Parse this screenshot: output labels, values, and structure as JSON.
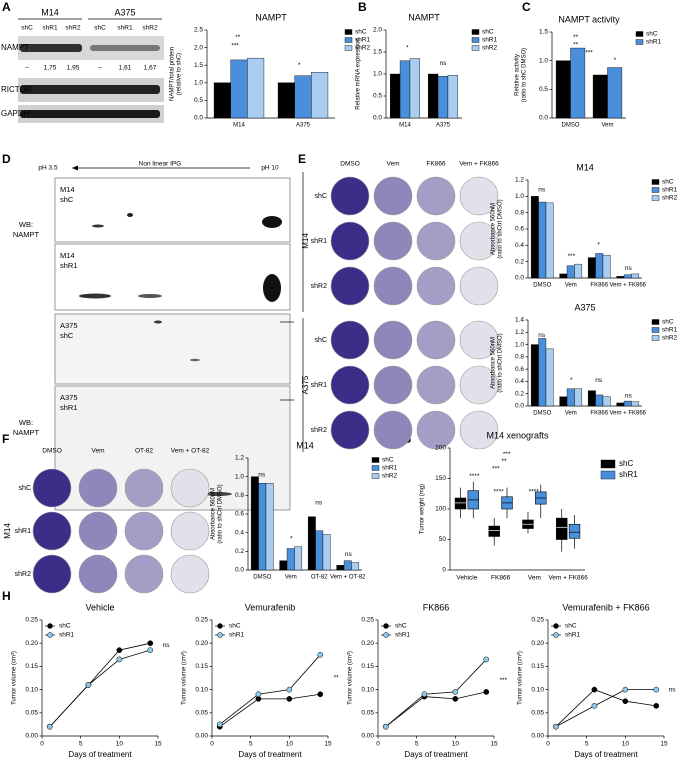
{
  "panels": [
    "A",
    "B",
    "C",
    "D",
    "E",
    "F",
    "G",
    "H"
  ],
  "blot_a": {
    "cell_lines": [
      "M14",
      "A375"
    ],
    "lanes": [
      "shC",
      "shR1",
      "shR2",
      "shC",
      "shR1",
      "shR2"
    ],
    "proteins": [
      "NAMPT",
      "RICTOR",
      "GAPDH"
    ],
    "quantification": [
      "–",
      "1,75",
      "1,95",
      "–",
      "1,61",
      "1,67"
    ]
  },
  "blot_d": {
    "axis_labels": [
      "pH 3.5",
      "Non linear IPG",
      "pH 10"
    ],
    "probe": [
      "WB:",
      "NAMPT"
    ],
    "samples": [
      [
        "M14",
        "shC"
      ],
      [
        "M14",
        "shR1"
      ],
      [
        "A375",
        "shC"
      ],
      [
        "A375",
        "shR1"
      ]
    ]
  },
  "plates_e": {
    "treatments": [
      "DMSO",
      "Vem",
      "FK866",
      "Vem + FK866"
    ],
    "cell_lines": [
      "M14",
      "A375"
    ],
    "rows": [
      "shC",
      "shR1",
      "shR2"
    ]
  },
  "plates_f": {
    "treatments": [
      "DMSO",
      "Vem",
      "OT-82",
      "Vem + OT-82"
    ],
    "cell_lines": [
      "M14"
    ],
    "rows": [
      "shC",
      "shR1",
      "shR2"
    ]
  },
  "chart_data": [
    {
      "type": "bar",
      "title": "NAMPT",
      "ylabel": [
        "NAMPT/total protein",
        "(relative to shC)"
      ],
      "categories": [
        "M14",
        "A375"
      ],
      "series": [
        {
          "name": "shC",
          "color": "#000000",
          "values": [
            1,
            1
          ]
        },
        {
          "name": "shR1",
          "color": "#4a8fdc",
          "values": [
            1.65,
            1.2
          ]
        },
        {
          "name": "shR2",
          "color": "#a9cdf0",
          "values": [
            1.7,
            1.3
          ]
        }
      ],
      "ylim": [
        0,
        2.5
      ],
      "yticks": [
        {
          "value": 0,
          "label": "0.0"
        },
        0.5,
        {
          "value": 1,
          "label": "1.0"
        },
        1.5,
        {
          "value": 2,
          "label": "2.0"
        },
        2.5
      ],
      "annotations": [
        "**",
        "***",
        "*"
      ],
      "legend": "outside right"
    },
    {
      "type": "bar",
      "title": "NAMPT",
      "ylabel": [
        "Relative mRNA expression"
      ],
      "categories": [
        "M14",
        "A375"
      ],
      "series": [
        {
          "name": "shC",
          "color": "#000000",
          "values": [
            1,
            1
          ]
        },
        {
          "name": "shR1",
          "color": "#4a8fdc",
          "values": [
            1.3,
            0.95
          ]
        },
        {
          "name": "shR2",
          "color": "#a9cdf0",
          "values": [
            1.35,
            0.97
          ]
        }
      ],
      "ylim": [
        0,
        2
      ],
      "yticks": [
        {
          "value": 0,
          "label": "0.0"
        },
        0.5,
        {
          "value": 1,
          "label": "1.0"
        },
        1.5,
        {
          "value": 2,
          "label": "2.0"
        }
      ],
      "annotations": [
        "*",
        "ns"
      ],
      "legend": "outside right"
    },
    {
      "type": "bar",
      "title": "NAMPT activity",
      "ylabel": [
        "Relative activity",
        "(ratio to shC DMSO)"
      ],
      "categories": [
        "DMSO",
        "Vem"
      ],
      "series": [
        {
          "name": "shC",
          "color": "#000000",
          "values": [
            1,
            0.75
          ]
        },
        {
          "name": "shR1",
          "color": "#4a8fdc",
          "values": [
            1.22,
            0.88
          ]
        }
      ],
      "ylim": [
        0,
        1.5
      ],
      "yticks": [
        {
          "value": 0,
          "label": "0.0"
        },
        0.5,
        {
          "value": 1,
          "label": "1.0"
        },
        1.5
      ],
      "annotations": [
        "**",
        "**",
        "***",
        "*"
      ],
      "legend": "outside right"
    },
    {
      "type": "bar",
      "title": "M14",
      "ylabel": [
        "Absorbance 560nM",
        "(ratio to shCtrl DMSO)"
      ],
      "categories": [
        "DMSO",
        "Vem",
        "FK866",
        "Vem + FK866"
      ],
      "series": [
        {
          "name": "shC",
          "color": "#000000",
          "values": [
            1.0,
            0.05,
            0.25,
            0.02
          ]
        },
        {
          "name": "shR1",
          "color": "#4a8fdc",
          "values": [
            0.93,
            0.15,
            0.3,
            0.04
          ]
        },
        {
          "name": "shR2",
          "color": "#a9cdf0",
          "values": [
            0.92,
            0.17,
            0.28,
            0.05
          ]
        }
      ],
      "ylim": [
        0,
        1.2
      ],
      "yticks": [
        {
          "value": 0,
          "label": "0.0"
        },
        0.2,
        0.4,
        0.6,
        0.8,
        {
          "value": 1,
          "label": "1.0"
        },
        1.2
      ],
      "annotations": [
        "ns",
        "***",
        "*",
        "ns"
      ],
      "legend": "outside right"
    },
    {
      "type": "bar",
      "title": "A375",
      "ylabel": [
        "Absorbance 560nM",
        "(ratio to shCtrl DMSO)"
      ],
      "categories": [
        "DMSO",
        "Vem",
        "FK866",
        "Vem + FK866"
      ],
      "series": [
        {
          "name": "shC",
          "color": "#000000",
          "values": [
            1.0,
            0.15,
            0.25,
            0.05
          ]
        },
        {
          "name": "shR1",
          "color": "#4a8fdc",
          "values": [
            1.1,
            0.28,
            0.18,
            0.08
          ]
        },
        {
          "name": "shR2",
          "color": "#a9cdf0",
          "values": [
            0.93,
            0.28,
            0.15,
            0.07
          ]
        }
      ],
      "ylim": [
        0,
        1.4
      ],
      "yticks": [
        {
          "value": 0,
          "label": "0.0"
        },
        0.2,
        0.4,
        0.6,
        0.8,
        {
          "value": 1,
          "label": "1.0"
        },
        1.2,
        1.4
      ],
      "annotations": [
        "ns",
        "*",
        "ns",
        "ns"
      ],
      "legend": "outside right"
    },
    {
      "type": "bar",
      "title": "M14",
      "ylabel": [
        "Absorbance 560nM",
        "(ratio to shCtrl DMSO)"
      ],
      "categories": [
        "DMSO",
        "Vem",
        "OT-82",
        "Vem + OT-82"
      ],
      "series": [
        {
          "name": "shC",
          "color": "#000000",
          "values": [
            1.0,
            0.1,
            0.57,
            0.05
          ]
        },
        {
          "name": "shR1",
          "color": "#4a8fdc",
          "values": [
            0.93,
            0.23,
            0.42,
            0.1
          ]
        },
        {
          "name": "shR2",
          "color": "#a9cdf0",
          "values": [
            0.93,
            0.25,
            0.38,
            0.08
          ]
        }
      ],
      "ylim": [
        0,
        1.2
      ],
      "yticks": [
        {
          "value": 0,
          "label": "0.0"
        },
        0.2,
        0.4,
        0.6,
        0.8,
        {
          "value": 1,
          "label": "1.0"
        },
        1.2
      ],
      "annotations": [
        "ns",
        "*",
        "ns",
        "ns"
      ],
      "legend": "outside right"
    },
    {
      "type": "box",
      "title": "M14 xenografts",
      "ylabel": [
        "Tumor weight (mg)"
      ],
      "categories": [
        "Vehicle",
        "FK866",
        "Vem",
        "Vem + FK866"
      ],
      "series": [
        {
          "name": "shC",
          "color": "#000000",
          "min": [
            85,
            40,
            60,
            30
          ],
          "q1": [
            100,
            55,
            68,
            50
          ],
          "median": [
            110,
            65,
            75,
            70
          ],
          "q3": [
            118,
            72,
            82,
            85
          ],
          "max": [
            135,
            85,
            95,
            100
          ]
        },
        {
          "name": "shR1",
          "color": "#4a8fdc",
          "min": [
            85,
            85,
            85,
            35
          ],
          "q1": [
            100,
            100,
            108,
            52
          ],
          "median": [
            115,
            110,
            118,
            62
          ],
          "q3": [
            130,
            120,
            128,
            75
          ],
          "max": [
            145,
            135,
            140,
            90
          ]
        }
      ],
      "ylim": [
        0,
        200
      ],
      "yticks": [
        0,
        50,
        100,
        150,
        200
      ],
      "annotations": [
        "***",
        "**",
        "***",
        "****",
        "****",
        "****"
      ],
      "legend": "outside right"
    },
    {
      "type": "line",
      "title": "Vehicle",
      "xlabel": "Days of treatment",
      "ylabel": [
        "Tumor volume (cm³)"
      ],
      "x": [
        1,
        6,
        10,
        14
      ],
      "series": [
        {
          "name": "shC",
          "color": "#000000",
          "values": [
            0.02,
            0.11,
            0.185,
            0.2
          ]
        },
        {
          "name": "shR1",
          "color": "#8ec9ec",
          "values": [
            0.02,
            0.11,
            0.165,
            0.185
          ]
        }
      ],
      "xlim": [
        0,
        15
      ],
      "xticks": [
        0,
        5,
        10,
        15
      ],
      "ylim": [
        0,
        0.25
      ],
      "yticks": [
        {
          "value": 0,
          "label": "0.00"
        },
        0.05,
        {
          "value": 0.1,
          "label": "0.10"
        },
        0.15,
        {
          "value": 0.2,
          "label": "0.20"
        },
        0.25
      ],
      "annotations": [
        "ns"
      ],
      "legend": "upper left"
    },
    {
      "type": "line",
      "title": "Vemurafenib",
      "xlabel": "Days of treatment",
      "ylabel": [
        "Tumor volume (cm³)"
      ],
      "x": [
        1,
        6,
        10,
        14
      ],
      "series": [
        {
          "name": "shC",
          "color": "#000000",
          "values": [
            0.02,
            0.08,
            0.08,
            0.09
          ]
        },
        {
          "name": "shR1",
          "color": "#8ec9ec",
          "values": [
            0.025,
            0.09,
            0.1,
            0.175
          ]
        }
      ],
      "xlim": [
        0,
        15
      ],
      "xticks": [
        0,
        5,
        10,
        15
      ],
      "ylim": [
        0,
        0.25
      ],
      "yticks": [
        {
          "value": 0,
          "label": "0.00"
        },
        0.05,
        {
          "value": 0.1,
          "label": "0.10"
        },
        0.15,
        {
          "value": 0.2,
          "label": "0.20"
        },
        0.25
      ],
      "annotations": [
        "**"
      ],
      "legend": "upper left"
    },
    {
      "type": "line",
      "title": "FK866",
      "xlabel": "Days of treatment",
      "ylabel": [
        "Tumor volume (cm³)"
      ],
      "x": [
        1,
        6,
        10,
        14
      ],
      "series": [
        {
          "name": "shC",
          "color": "#000000",
          "values": [
            0.02,
            0.085,
            0.08,
            0.095
          ]
        },
        {
          "name": "shR1",
          "color": "#8ec9ec",
          "values": [
            0.02,
            0.09,
            0.095,
            0.165
          ]
        }
      ],
      "xlim": [
        0,
        15
      ],
      "xticks": [
        0,
        5,
        10,
        15
      ],
      "ylim": [
        0,
        0.25
      ],
      "yticks": [
        {
          "value": 0,
          "label": "0.00"
        },
        0.05,
        {
          "value": 0.1,
          "label": "0.10"
        },
        0.15,
        {
          "value": 0.2,
          "label": "0.20"
        },
        0.25
      ],
      "annotations": [
        "***"
      ],
      "legend": "upper left"
    },
    {
      "type": "line",
      "title": "Vemurafenib + FK866",
      "xlabel": "Days of treatment",
      "ylabel": [
        "Tumor volume (cm³)"
      ],
      "x": [
        1,
        6,
        10,
        14
      ],
      "series": [
        {
          "name": "shC",
          "color": "#000000",
          "values": [
            0.02,
            0.1,
            0.075,
            0.065
          ]
        },
        {
          "name": "shR1",
          "color": "#8ec9ec",
          "values": [
            0.02,
            0.065,
            0.1,
            0.1
          ]
        }
      ],
      "xlim": [
        0,
        15
      ],
      "xticks": [
        0,
        5,
        10,
        15
      ],
      "ylim": [
        0,
        0.25
      ],
      "yticks": [
        {
          "value": 0,
          "label": "0.00"
        },
        0.05,
        {
          "value": 0.1,
          "label": "0.10"
        },
        0.15,
        {
          "value": 0.2,
          "label": "0.20"
        },
        0.25
      ],
      "annotations": [
        "ns"
      ],
      "legend": "upper left"
    }
  ]
}
